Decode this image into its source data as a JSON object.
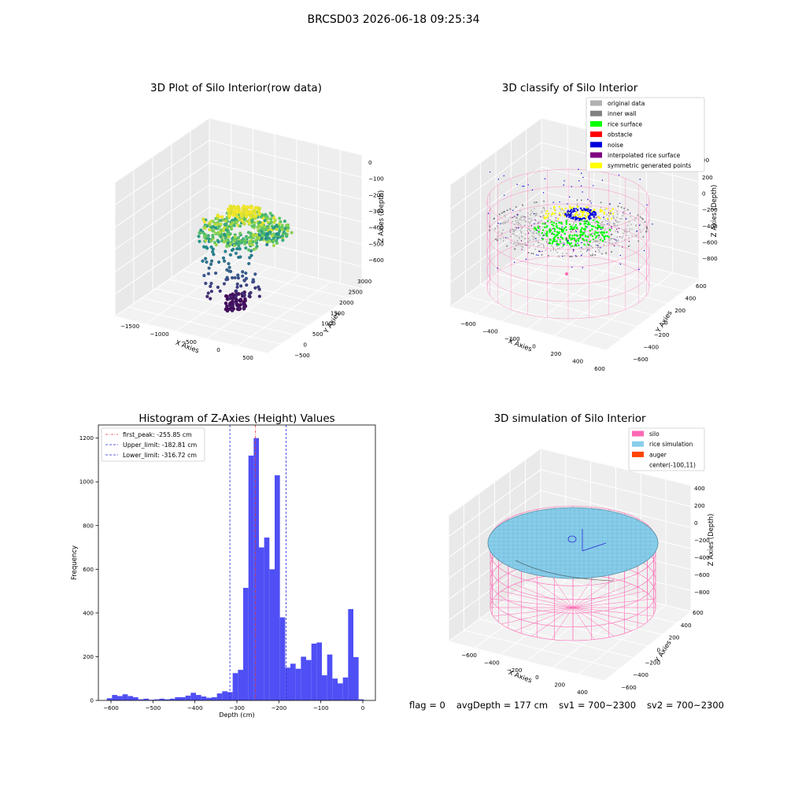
{
  "suptitle": "BRCSD03 2026-06-18 09:25:34",
  "colors": {
    "hist_bar": "#4f4ff5",
    "first_peak_line": "#e8383a",
    "limit_line": "#2b2bd6",
    "silo": "#ff69b4",
    "rice": "#87ceeb",
    "auger": "#ff4500",
    "original": "#b0b0b0",
    "inner_wall": "#808080",
    "rice_surface": "#00ff00",
    "obstacle": "#ff0000",
    "noise": "#0000dd",
    "interpolated": "#800080",
    "symmetric": "#ffff00"
  },
  "chart_data": [
    {
      "type": "scatter",
      "panel": "raw",
      "title": "3D Plot of Silo Interior(row data)",
      "xlabel": "X Axies",
      "ylabel": "Y Axies",
      "zlabel": "Z Axies (Depth)",
      "x_ticks": [
        "−1500",
        "−1000",
        "−500",
        "0",
        "500"
      ],
      "y_ticks": [
        "−500",
        "0",
        "500",
        "1000",
        "1500",
        "2000",
        "2500",
        "3000"
      ],
      "z_ticks": [
        "0",
        "−100",
        "−200",
        "−300",
        "−400",
        "−500",
        "−600"
      ],
      "colormap": "viridis"
    },
    {
      "type": "scatter",
      "panel": "classify",
      "title": "3D classify of Silo Interior",
      "xlabel": "X Axies",
      "ylabel": "Y Axies",
      "zlabel": "Z Axies (Depth)",
      "x_ticks": [
        "−600",
        "−400",
        "−200",
        "0",
        "200",
        "400",
        "600"
      ],
      "y_ticks": [
        "−600",
        "−400",
        "−200",
        "0",
        "200",
        "400",
        "600"
      ],
      "z_ticks": [
        "200",
        "0",
        "−200",
        "−400",
        "−600",
        "−800"
      ],
      "z_top_partial": "00",
      "legend": [
        "original data",
        "inner wall",
        "rice surface",
        "obstacle",
        "noise",
        "interpolated rice surface",
        "symmetric generated points"
      ],
      "legend_position": "top-right"
    },
    {
      "type": "bar",
      "panel": "histogram",
      "title": "Histogram of Z-Axies (Height) Values",
      "xlabel": "Depth (cm)",
      "ylabel": "Frequency",
      "xlim": [
        -630,
        30
      ],
      "ylim": [
        0,
        1260
      ],
      "x_ticks": [
        -600,
        -500,
        -400,
        -300,
        -200,
        -100,
        0
      ],
      "y_ticks": [
        0,
        200,
        400,
        600,
        800,
        1000,
        1200
      ],
      "bin_width": 12.5,
      "bin_start": -610,
      "values": [
        10,
        25,
        20,
        28,
        20,
        15,
        5,
        8,
        3,
        5,
        8,
        5,
        8,
        15,
        15,
        22,
        35,
        25,
        18,
        12,
        15,
        32,
        42,
        38,
        125,
        140,
        515,
        1120,
        1200,
        700,
        745,
        600,
        1030,
        380,
        150,
        168,
        145,
        200,
        185,
        260,
        265,
        115,
        210,
        100,
        78,
        105,
        418,
        198,
        5
      ],
      "lines": [
        {
          "label": "first_peak: -255.85 cm",
          "x": -255.85,
          "style": "dash-dot",
          "color": "first_peak_line"
        },
        {
          "label": "Upper_limit: -182.81 cm",
          "x": -182.81,
          "style": "dash",
          "color": "limit_line"
        },
        {
          "label": "Lower_limit: -316.72 cm",
          "x": -316.72,
          "style": "dash",
          "color": "limit_line"
        }
      ],
      "legend_position": "top-left"
    },
    {
      "type": "surface",
      "panel": "simulation",
      "title": "3D simulation of Silo Interior",
      "xlabel": "X Axies",
      "ylabel": "Y Axies",
      "zlabel": "Z Axies (Depth)",
      "x_ticks": [
        "−600",
        "−400",
        "−200",
        "0",
        "200",
        "400"
      ],
      "y_ticks": [
        "−600",
        "−400",
        "−200",
        "0",
        "200",
        "400",
        "600"
      ],
      "z_ticks": [
        "400",
        "200",
        "0",
        "−200",
        "−400",
        "−600",
        "−800"
      ],
      "legend": [
        "silo",
        "rice simulation",
        "auger",
        "center(-100,11)"
      ],
      "legend_position": "top-right"
    }
  ],
  "status": {
    "flag": "flag = 0",
    "avg_depth": "avgDepth = 177 cm",
    "sv1": "sv1 = 700~2300",
    "sv2": "sv2 = 700~2300"
  }
}
